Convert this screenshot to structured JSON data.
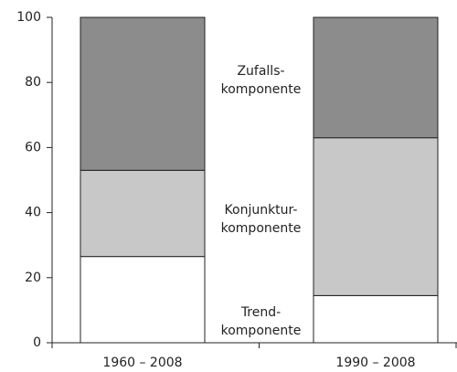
{
  "chart_data": {
    "type": "stacked-bar",
    "categories": [
      "1960 – 2008",
      "1990 – 2008"
    ],
    "series": [
      {
        "name": "Trend-\nkomponente",
        "color": "#ffffff",
        "values": [
          26.5,
          14.5
        ]
      },
      {
        "name": "Konjunktur-\nkomponente",
        "color": "#c8c8c8",
        "values": [
          26.5,
          48.5
        ]
      },
      {
        "name": "Zufalls-\nkomponente",
        "color": "#8c8c8c",
        "values": [
          47,
          37
        ]
      }
    ],
    "ylim": [
      0,
      100
    ],
    "yticks": [
      0,
      20,
      40,
      60,
      80,
      100
    ]
  }
}
